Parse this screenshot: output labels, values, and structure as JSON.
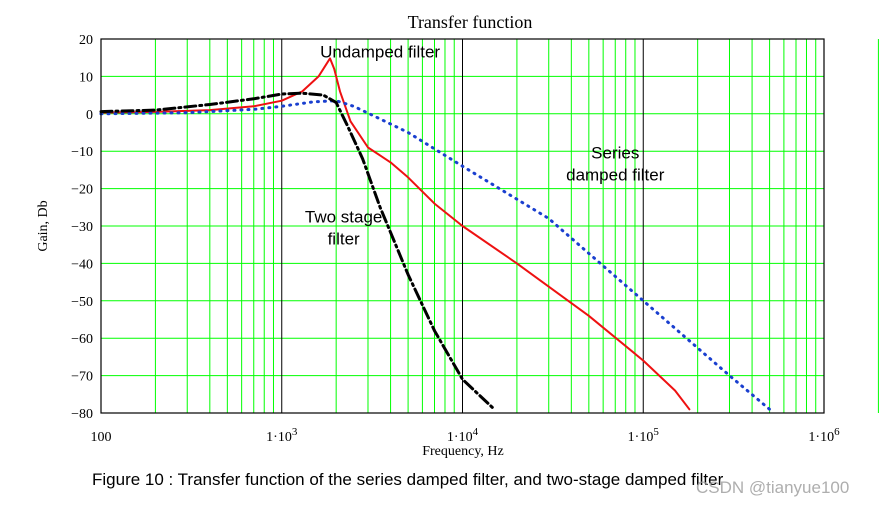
{
  "caption": "Figure 10 : Transfer function of the series damped filter, and two-stage damped filter",
  "watermark": "CSDN @tianyue100",
  "chart_data": {
    "type": "line",
    "title": "Transfer function",
    "xlabel": "Frequency, Hz",
    "ylabel": "Gain, Db",
    "x_scale": "log",
    "xlim": [
      100,
      1000000
    ],
    "ylim": [
      -80,
      20
    ],
    "x_ticks": [
      {
        "value": 100,
        "label": "100"
      },
      {
        "value": 1000,
        "label": "1·10",
        "exp": "3"
      },
      {
        "value": 10000,
        "label": "1·10",
        "exp": "4"
      },
      {
        "value": 100000,
        "label": "1·10",
        "exp": "5"
      },
      {
        "value": 1000000,
        "label": "1·10",
        "exp": "6"
      }
    ],
    "y_ticks": [
      20,
      10,
      0,
      -10,
      -20,
      -30,
      -40,
      -50,
      -60,
      -70,
      -80
    ],
    "grid": true,
    "grid_color": "#00ff00",
    "annotations": [
      {
        "lines": [
          "Undamped filter"
        ],
        "x": 3500,
        "y": 15
      },
      {
        "lines": [
          "Series",
          "damped filter"
        ],
        "x": 70000,
        "y": -12
      },
      {
        "lines": [
          "Two stage",
          "filter"
        ],
        "x": 2200,
        "y": -29
      }
    ],
    "series": [
      {
        "key": "undamped",
        "color": "#ee1111",
        "style": "solid",
        "points": [
          [
            100,
            0.3
          ],
          [
            200,
            0.5
          ],
          [
            400,
            1
          ],
          [
            700,
            2
          ],
          [
            1000,
            3.5
          ],
          [
            1300,
            6
          ],
          [
            1600,
            10
          ],
          [
            1750,
            13
          ],
          [
            1850,
            14.8
          ],
          [
            1950,
            12
          ],
          [
            2100,
            6
          ],
          [
            2400,
            -2
          ],
          [
            3000,
            -9
          ],
          [
            4000,
            -13
          ],
          [
            5000,
            -17
          ],
          [
            7000,
            -24
          ],
          [
            10000,
            -30
          ],
          [
            20000,
            -40
          ],
          [
            50000,
            -54
          ],
          [
            100000,
            -66
          ],
          [
            150000,
            -74
          ],
          [
            180000,
            -79
          ]
        ]
      },
      {
        "key": "series-damped",
        "color": "#1a3fcf",
        "style": "dotted",
        "points": [
          [
            100,
            0
          ],
          [
            300,
            0.3
          ],
          [
            700,
            1.2
          ],
          [
            1000,
            2
          ],
          [
            1500,
            3.2
          ],
          [
            2000,
            3.5
          ],
          [
            2500,
            2
          ],
          [
            3000,
            0.2
          ],
          [
            5000,
            -5
          ],
          [
            10000,
            -14
          ],
          [
            30000,
            -28
          ],
          [
            100000,
            -50
          ],
          [
            300000,
            -70
          ],
          [
            500000,
            -79
          ]
        ]
      },
      {
        "key": "two-stage",
        "color": "#000000",
        "style": "dash-dot",
        "points": [
          [
            100,
            0.6
          ],
          [
            200,
            1
          ],
          [
            400,
            2.5
          ],
          [
            700,
            4
          ],
          [
            1000,
            5.3
          ],
          [
            1300,
            5.5
          ],
          [
            1700,
            5
          ],
          [
            2000,
            3
          ],
          [
            2300,
            -3
          ],
          [
            2800,
            -12
          ],
          [
            3500,
            -25
          ],
          [
            5000,
            -43
          ],
          [
            7000,
            -58
          ],
          [
            10000,
            -71
          ],
          [
            15000,
            -79
          ]
        ]
      }
    ]
  }
}
